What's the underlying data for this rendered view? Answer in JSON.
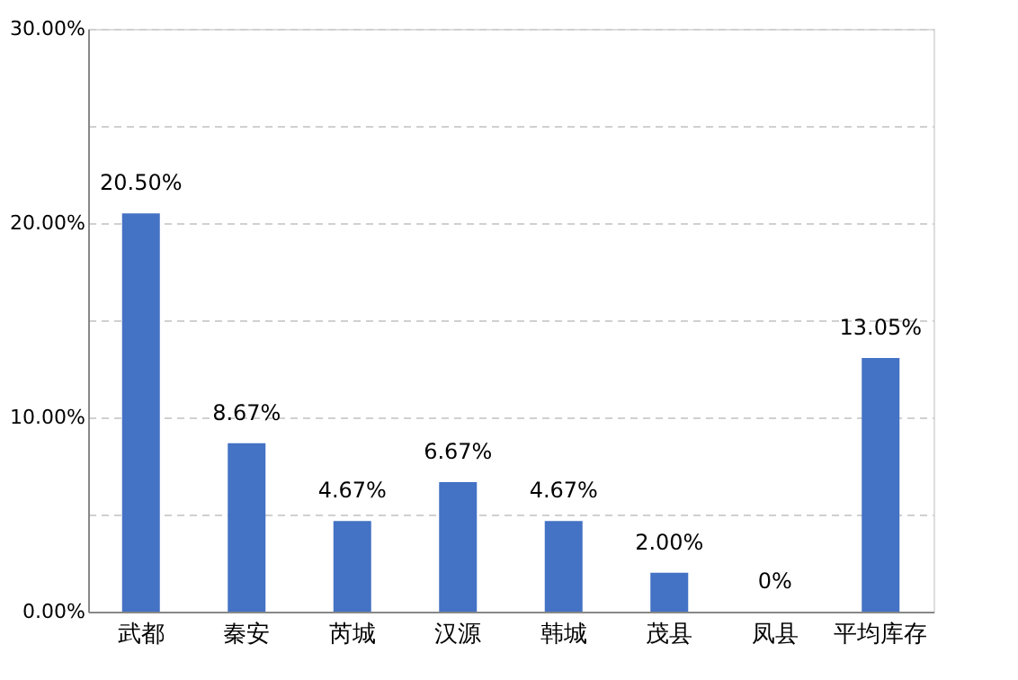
{
  "chart_data": {
    "type": "bar",
    "categories": [
      "武都",
      "秦安",
      "芮城",
      "汉源",
      "韩城",
      "茂县",
      "凤县",
      "平均库存"
    ],
    "values": [
      20.5,
      8.67,
      4.67,
      6.67,
      4.67,
      2.0,
      0,
      13.05
    ],
    "value_labels": [
      "20.50%",
      "8.67%",
      "4.67%",
      "6.67%",
      "4.67%",
      "2.00%",
      "0%",
      "13.05%"
    ],
    "color": "#4472c4",
    "ylim": [
      0,
      30
    ],
    "yticks": [
      {
        "value": 0,
        "label": "0.00%"
      },
      {
        "value": 5,
        "label": null
      },
      {
        "value": 10,
        "label": "10.00%"
      },
      {
        "value": 15,
        "label": null
      },
      {
        "value": 20,
        "label": "20.00%"
      },
      {
        "value": 25,
        "label": null
      },
      {
        "value": 30,
        "label": "30.00%"
      }
    ],
    "grid": "y"
  }
}
